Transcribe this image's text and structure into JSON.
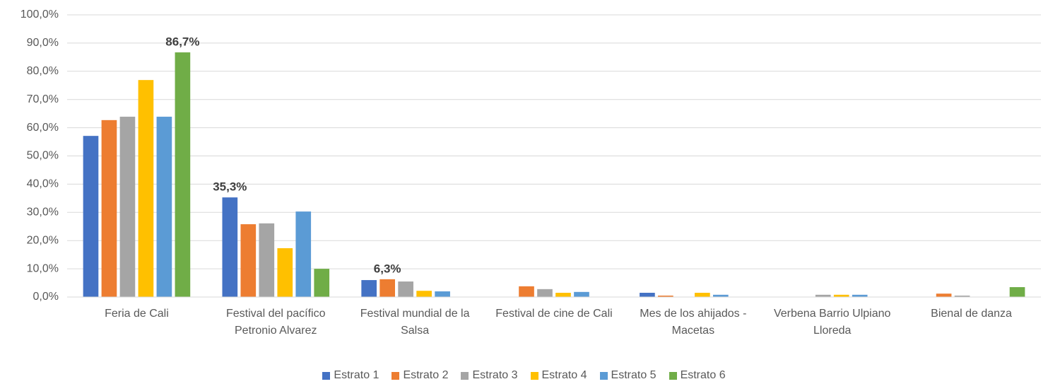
{
  "chart_data": {
    "type": "bar",
    "categories": [
      "Feria de Cali",
      "Festival del pacífico Petronio Alvarez",
      "Festival mundial de la Salsa",
      "Festival de cine de Cali",
      "Mes de los ahijados - Macetas",
      "Verbena Barrio Ulpiano Lloreda",
      "Bienal de danza"
    ],
    "series": [
      {
        "name": "Estrato 1",
        "color": "#4472c4",
        "values": [
          57.1,
          35.3,
          6.0,
          0,
          1.5,
          0,
          0
        ],
        "value_labels": [
          null,
          "35,3%",
          null,
          null,
          null,
          null,
          null
        ]
      },
      {
        "name": "Estrato 2",
        "color": "#ed7d31",
        "values": [
          62.7,
          25.8,
          6.3,
          3.8,
          0.5,
          0,
          1.2
        ],
        "value_labels": [
          null,
          null,
          "6,3%",
          null,
          null,
          null,
          null
        ]
      },
      {
        "name": "Estrato 3",
        "color": "#a5a5a5",
        "values": [
          63.9,
          26.1,
          5.5,
          2.8,
          0,
          0.8,
          0.5
        ]
      },
      {
        "name": "Estrato 4",
        "color": "#ffc000",
        "values": [
          76.9,
          17.3,
          2.2,
          1.5,
          1.5,
          0.8,
          0
        ]
      },
      {
        "name": "Estrato 5",
        "color": "#5b9bd5",
        "values": [
          63.9,
          30.3,
          2.0,
          1.8,
          0.8,
          0.8,
          0
        ]
      },
      {
        "name": "Estrato 6",
        "color": "#70ad47",
        "values": [
          86.7,
          10.0,
          0,
          0,
          0,
          0,
          3.5
        ],
        "value_labels": [
          "86,7%",
          null,
          null,
          null,
          null,
          null,
          null
        ]
      }
    ],
    "ylim": [
      0,
      100
    ],
    "yticks": [
      {
        "value": 0,
        "label": "0,0%"
      },
      {
        "value": 10,
        "label": "10,0%"
      },
      {
        "value": 20,
        "label": "20,0%"
      },
      {
        "value": 30,
        "label": "30,0%"
      },
      {
        "value": 40,
        "label": "40,0%"
      },
      {
        "value": 50,
        "label": "50,0%"
      },
      {
        "value": 60,
        "label": "60,0%"
      },
      {
        "value": 70,
        "label": "70,0%"
      },
      {
        "value": 80,
        "label": "80,0%"
      },
      {
        "value": 90,
        "label": "90,0%"
      },
      {
        "value": 100,
        "label": "100,0%"
      }
    ],
    "grid": true,
    "legend": "bottom"
  }
}
